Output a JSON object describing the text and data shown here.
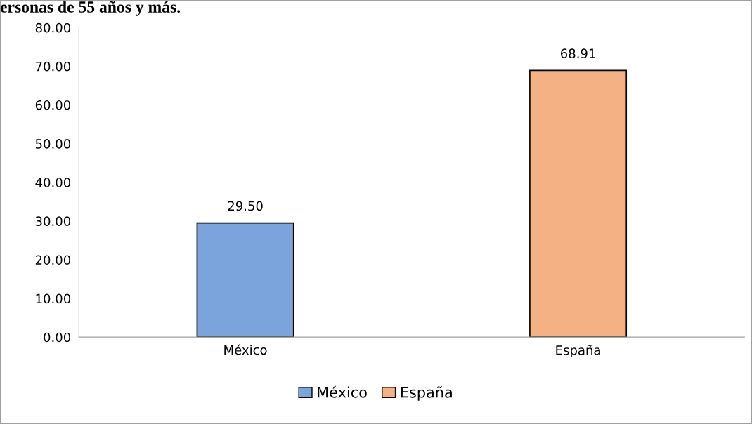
{
  "chart_data": {
    "type": "bar",
    "title": "ersonas de 55 años y más.",
    "categories": [
      "México",
      "España"
    ],
    "series": [
      {
        "name": "México",
        "color": "#7ba3dc",
        "values": [
          29.5,
          null
        ]
      },
      {
        "name": "España",
        "color": "#f4b183",
        "values": [
          null,
          68.91
        ]
      }
    ],
    "ylim": [
      0,
      80
    ],
    "yticks": [
      {
        "value": 0,
        "label": "0.00"
      },
      {
        "value": 10,
        "label": "10.00"
      },
      {
        "value": 20,
        "label": "20.00"
      },
      {
        "value": 30,
        "label": "30.00"
      },
      {
        "value": 40,
        "label": "40.00"
      },
      {
        "value": 50,
        "label": "50.00"
      },
      {
        "value": 60,
        "label": "60.00"
      },
      {
        "value": 70,
        "label": "70.00"
      },
      {
        "value": 80,
        "label": "80.00"
      }
    ],
    "value_labels": [
      [
        "29.50",
        null
      ],
      [
        null,
        "68.91"
      ]
    ],
    "grid": false,
    "legend": "bottom"
  }
}
